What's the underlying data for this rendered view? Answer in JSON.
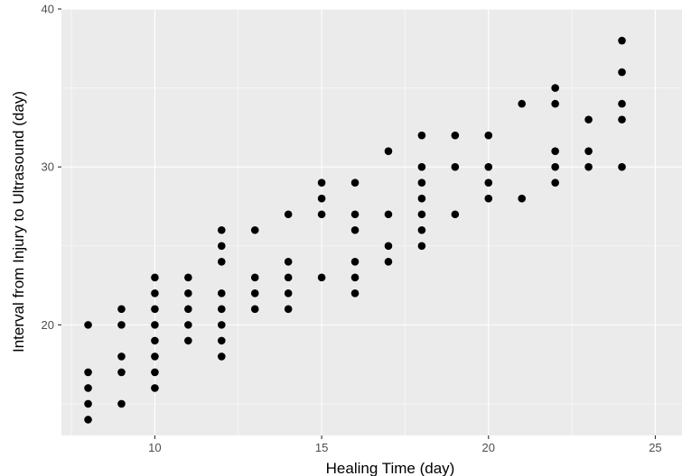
{
  "chart_data": {
    "type": "scatter",
    "title": "",
    "xlabel": "Healing Time (day)",
    "ylabel": "Interval from Injury to Ultrasound (day)",
    "xlim": [
      7.2,
      25.8
    ],
    "ylim": [
      13,
      40
    ],
    "xticks": [
      10,
      15,
      20,
      25
    ],
    "yticks": [
      20,
      30,
      40
    ],
    "grid": true,
    "legend": "none",
    "point_color": "#000000",
    "panel_color": "#ebebeb",
    "points": [
      [
        8,
        20
      ],
      [
        8,
        17
      ],
      [
        8,
        16
      ],
      [
        8,
        15
      ],
      [
        8,
        14
      ],
      [
        9,
        21
      ],
      [
        9,
        20
      ],
      [
        9,
        18
      ],
      [
        9,
        17
      ],
      [
        9,
        15
      ],
      [
        10,
        23
      ],
      [
        10,
        22
      ],
      [
        10,
        21
      ],
      [
        10,
        20
      ],
      [
        10,
        19
      ],
      [
        10,
        18
      ],
      [
        10,
        17
      ],
      [
        10,
        16
      ],
      [
        11,
        23
      ],
      [
        11,
        22
      ],
      [
        11,
        21
      ],
      [
        11,
        20
      ],
      [
        11,
        19
      ],
      [
        12,
        26
      ],
      [
        12,
        25
      ],
      [
        12,
        24
      ],
      [
        12,
        22
      ],
      [
        12,
        21
      ],
      [
        12,
        20
      ],
      [
        12,
        19
      ],
      [
        12,
        18
      ],
      [
        13,
        26
      ],
      [
        13,
        23
      ],
      [
        13,
        22
      ],
      [
        13,
        21
      ],
      [
        14,
        27
      ],
      [
        14,
        24
      ],
      [
        14,
        23
      ],
      [
        14,
        22
      ],
      [
        14,
        21
      ],
      [
        15,
        29
      ],
      [
        15,
        28
      ],
      [
        15,
        27
      ],
      [
        15,
        23
      ],
      [
        16,
        29
      ],
      [
        16,
        27
      ],
      [
        16,
        26
      ],
      [
        16,
        24
      ],
      [
        16,
        23
      ],
      [
        16,
        22
      ],
      [
        17,
        31
      ],
      [
        17,
        27
      ],
      [
        17,
        25
      ],
      [
        17,
        24
      ],
      [
        18,
        32
      ],
      [
        18,
        30
      ],
      [
        18,
        29
      ],
      [
        18,
        28
      ],
      [
        18,
        27
      ],
      [
        18,
        26
      ],
      [
        18,
        25
      ],
      [
        19,
        32
      ],
      [
        19,
        30
      ],
      [
        19,
        27
      ],
      [
        20,
        32
      ],
      [
        20,
        30
      ],
      [
        20,
        29
      ],
      [
        20,
        28
      ],
      [
        21,
        34
      ],
      [
        21,
        28
      ],
      [
        22,
        35
      ],
      [
        22,
        34
      ],
      [
        22,
        31
      ],
      [
        22,
        30
      ],
      [
        22,
        29
      ],
      [
        23,
        33
      ],
      [
        23,
        31
      ],
      [
        23,
        30
      ],
      [
        24,
        38
      ],
      [
        24,
        36
      ],
      [
        24,
        34
      ],
      [
        24,
        33
      ],
      [
        24,
        30
      ]
    ]
  }
}
